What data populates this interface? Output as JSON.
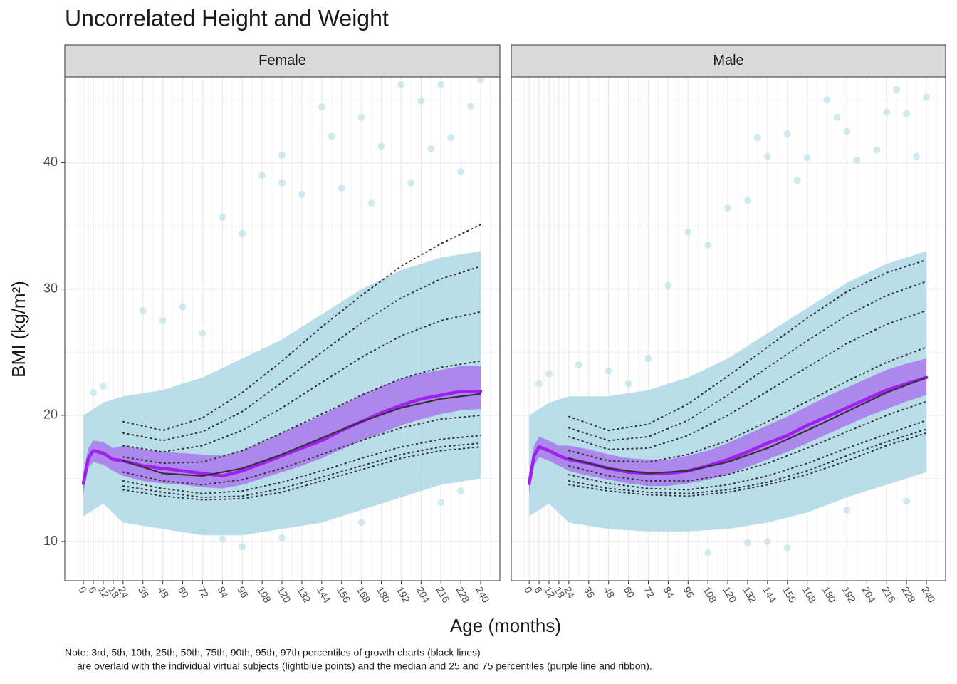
{
  "title": "Uncorrelated Height and Weight",
  "x_label": "Age (months)",
  "y_label": "BMI (kg/m²)",
  "note": [
    "Note: 3rd, 5th, 10th, 25th, 50th, 75th, 90th, 95th, 97th percentiles of growth charts (black lines)",
    "are overlaid with the individual virtual subjects (lightblue points) and the median and 25 and 75 percentiles (purple line and ribbon)."
  ],
  "chart_data": [
    {
      "type": "line",
      "facet": "Female",
      "xlim": [
        -11.2,
        251.6
      ],
      "ylim": [
        6.9,
        46.8
      ],
      "xticks": [
        0,
        6,
        12,
        18,
        24,
        36,
        48,
        60,
        72,
        84,
        96,
        108,
        120,
        132,
        144,
        156,
        168,
        180,
        192,
        204,
        216,
        228,
        240
      ],
      "yticks": [
        10,
        20,
        30,
        40
      ],
      "grid": true,
      "cloud": {
        "color": "#add8e6",
        "x": [
          0,
          12,
          24,
          48,
          72,
          96,
          120,
          144,
          168,
          192,
          216,
          240
        ],
        "low": [
          12,
          13,
          11.5,
          11,
          10.5,
          10.5,
          11,
          11.5,
          12.5,
          13.5,
          14.5,
          15
        ],
        "high": [
          20,
          21,
          21.5,
          22,
          23,
          24.5,
          26,
          28,
          30,
          31.5,
          32.5,
          33
        ]
      },
      "points": {
        "color": "#add8e6",
        "x": [
          36,
          48,
          60,
          72,
          84,
          96,
          108,
          120,
          120,
          132,
          144,
          150,
          156,
          168,
          174,
          180,
          192,
          198,
          204,
          210,
          216,
          222,
          228,
          234,
          240,
          96,
          84,
          72,
          120,
          168,
          216,
          228,
          12,
          6
        ],
        "y": [
          28.3,
          27.5,
          28.6,
          26.5,
          35.7,
          34.4,
          39,
          40.6,
          38.4,
          37.5,
          44.4,
          42.1,
          38,
          43.6,
          36.8,
          41.3,
          46.2,
          38.4,
          44.9,
          41.1,
          46.2,
          42,
          39.3,
          44.5,
          46.6,
          9.6,
          10.2,
          10.8,
          10.3,
          11.5,
          13.1,
          14,
          22.3,
          21.8
        ]
      },
      "simulated": {
        "color": "#a020f0",
        "x": [
          0,
          3,
          6,
          12,
          18,
          24,
          36,
          48,
          60,
          72,
          84,
          96,
          108,
          120,
          132,
          144,
          156,
          168,
          180,
          192,
          204,
          216,
          228,
          240
        ],
        "median": [
          14.6,
          16.6,
          17.2,
          17,
          16.5,
          16.4,
          16,
          15.8,
          15.6,
          15.4,
          15.2,
          15.6,
          16.2,
          16.8,
          17.4,
          18,
          18.8,
          19.5,
          20.2,
          20.8,
          21.3,
          21.6,
          21.9,
          21.9
        ],
        "p25": [
          13.8,
          15.8,
          16.3,
          16.1,
          15.6,
          15.2,
          14.8,
          14.6,
          14.5,
          14.3,
          14.2,
          14.5,
          15,
          15.5,
          16,
          16.6,
          17.3,
          18,
          18.6,
          19.2,
          19.7,
          20.1,
          20.4,
          20.5
        ],
        "p75": [
          15.4,
          17.4,
          18,
          17.9,
          17.4,
          17.6,
          17.3,
          17.1,
          17,
          16.9,
          16.8,
          17.2,
          17.9,
          18.6,
          19.3,
          20,
          20.8,
          21.6,
          22.3,
          22.9,
          23.3,
          23.6,
          23.9,
          23.9
        ]
      },
      "percentiles": {
        "color": "#333333",
        "x": [
          24,
          48,
          72,
          96,
          120,
          144,
          168,
          192,
          216,
          240
        ],
        "series": [
          {
            "dotted": true,
            "values": [
              14.1,
              13.6,
              13.3,
              13.4,
              13.9,
              14.8,
              15.7,
              16.6,
              17.2,
              17.5
            ]
          },
          {
            "dotted": true,
            "values": [
              14.4,
              13.9,
              13.5,
              13.6,
              14.2,
              15.1,
              16,
              16.9,
              17.5,
              17.8
            ]
          },
          {
            "dotted": true,
            "values": [
              14.8,
              14.2,
              13.8,
              14,
              14.7,
              15.6,
              16.6,
              17.5,
              18.1,
              18.4
            ]
          },
          {
            "dotted": true,
            "values": [
              15.5,
              14.8,
              14.5,
              14.9,
              15.8,
              16.9,
              18,
              19,
              19.7,
              20
            ]
          },
          {
            "dotted": false,
            "values": [
              16.4,
              15.4,
              15.2,
              15.8,
              16.9,
              18.2,
              19.5,
              20.6,
              21.3,
              21.7
            ]
          },
          {
            "dotted": true,
            "values": [
              16.7,
              16.2,
              16.3,
              17.2,
              18.6,
              20.1,
              21.6,
              22.9,
              23.8,
              24.3
            ]
          },
          {
            "dotted": true,
            "values": [
              17.6,
              17.1,
              17.6,
              18.8,
              20.6,
              22.6,
              24.6,
              26.3,
              27.5,
              28.2
            ]
          },
          {
            "dotted": true,
            "values": [
              18.6,
              18,
              18.7,
              20.3,
              22.6,
              25,
              27.3,
              29.3,
              30.8,
              31.8
            ]
          },
          {
            "dotted": true,
            "values": [
              19.5,
              18.8,
              19.8,
              21.8,
              24.3,
              27,
              29.5,
              31.8,
              33.6,
              35.1
            ]
          }
        ]
      }
    },
    {
      "type": "line",
      "facet": "Male",
      "xlim": [
        -10.8,
        251.6
      ],
      "ylim": [
        6.9,
        46.8
      ],
      "xticks": [
        0,
        6,
        12,
        18,
        24,
        36,
        48,
        60,
        72,
        84,
        96,
        108,
        120,
        132,
        144,
        156,
        168,
        180,
        192,
        204,
        216,
        228,
        240
      ],
      "yticks": [
        10,
        20,
        30,
        40
      ],
      "grid": true,
      "cloud": {
        "color": "#add8e6",
        "x": [
          0,
          12,
          24,
          48,
          72,
          96,
          120,
          144,
          168,
          192,
          216,
          240
        ],
        "low": [
          12,
          13,
          11.5,
          11,
          10.8,
          10.8,
          11,
          11.5,
          12.3,
          13.5,
          14.5,
          15.5
        ],
        "high": [
          20,
          21,
          21.5,
          21.5,
          22,
          23,
          24.5,
          26.5,
          28.5,
          30.5,
          32,
          33
        ]
      },
      "points": {
        "color": "#add8e6",
        "x": [
          30,
          48,
          60,
          72,
          84,
          96,
          108,
          120,
          132,
          138,
          144,
          156,
          162,
          168,
          180,
          186,
          192,
          198,
          210,
          216,
          222,
          228,
          240,
          234,
          108,
          132,
          144,
          156,
          192,
          228,
          12,
          6
        ],
        "y": [
          24,
          23.5,
          22.5,
          24.5,
          30.3,
          34.5,
          33.5,
          36.4,
          37,
          42,
          40.5,
          42.3,
          38.6,
          40.4,
          45,
          43.6,
          42.5,
          40.2,
          41,
          44,
          45.8,
          43.9,
          45.2,
          40.5,
          9.1,
          9.9,
          10,
          9.5,
          12.5,
          13.2,
          23.3,
          22.5
        ]
      },
      "simulated": {
        "color": "#a020f0",
        "x": [
          0,
          3,
          6,
          12,
          18,
          24,
          36,
          48,
          60,
          72,
          84,
          96,
          108,
          120,
          132,
          144,
          156,
          168,
          180,
          192,
          204,
          216,
          228,
          240
        ],
        "median": [
          14.6,
          16.8,
          17.5,
          17.2,
          16.8,
          16.5,
          16.2,
          15.8,
          15.5,
          15.4,
          15.4,
          15.6,
          16,
          16.5,
          17.1,
          17.8,
          18.4,
          19.2,
          19.9,
          20.6,
          21.3,
          22,
          22.5,
          23
        ],
        "p25": [
          13.8,
          16,
          16.7,
          16.4,
          16,
          15.6,
          15.2,
          14.9,
          14.6,
          14.4,
          14.4,
          14.6,
          14.9,
          15.3,
          15.9,
          16.5,
          17.1,
          17.8,
          18.5,
          19.2,
          19.9,
          20.5,
          21.1,
          21.6
        ],
        "p75": [
          15.4,
          17.6,
          18.3,
          18,
          17.6,
          17.6,
          17.3,
          16.9,
          16.6,
          16.5,
          16.5,
          16.8,
          17.2,
          17.8,
          18.5,
          19.2,
          19.9,
          20.7,
          21.5,
          22.2,
          22.9,
          23.6,
          24.1,
          24.5
        ]
      },
      "percentiles": {
        "color": "#333333",
        "x": [
          24,
          48,
          72,
          96,
          120,
          144,
          168,
          192,
          216,
          240
        ],
        "series": [
          {
            "dotted": true,
            "values": [
              14.5,
              14,
              13.7,
              13.6,
              13.9,
              14.5,
              15.3,
              16.4,
              17.6,
              18.6
            ]
          },
          {
            "dotted": true,
            "values": [
              14.8,
              14.2,
              13.9,
              13.8,
              14.1,
              14.7,
              15.6,
              16.8,
              17.9,
              18.9
            ]
          },
          {
            "dotted": true,
            "values": [
              15.3,
              14.6,
              14.2,
              14.1,
              14.5,
              15.2,
              16.2,
              17.4,
              18.5,
              19.6
            ]
          },
          {
            "dotted": true,
            "values": [
              16,
              15.2,
              14.8,
              14.8,
              15.3,
              16.2,
              17.4,
              18.7,
              20,
              21.1
            ]
          },
          {
            "dotted": false,
            "values": [
              16.6,
              15.8,
              15.4,
              15.6,
              16.3,
              17.4,
              18.8,
              20.3,
              21.8,
              23
            ]
          },
          {
            "dotted": true,
            "values": [
              17.2,
              16.4,
              16.3,
              16.9,
              18,
              19.5,
              21.1,
              22.7,
              24.2,
              25.4
            ]
          },
          {
            "dotted": true,
            "values": [
              18.3,
              17.3,
              17.4,
              18.4,
              20,
              21.9,
              23.8,
              25.7,
              27.2,
              28.3
            ]
          },
          {
            "dotted": true,
            "values": [
              19,
              18,
              18.3,
              19.6,
              21.6,
              23.8,
              25.9,
              27.9,
              29.5,
              30.6
            ]
          },
          {
            "dotted": true,
            "values": [
              19.9,
              18.8,
              19.3,
              20.9,
              23.1,
              25.4,
              27.7,
              29.8,
              31.3,
              32.3
            ]
          }
        ]
      }
    }
  ]
}
